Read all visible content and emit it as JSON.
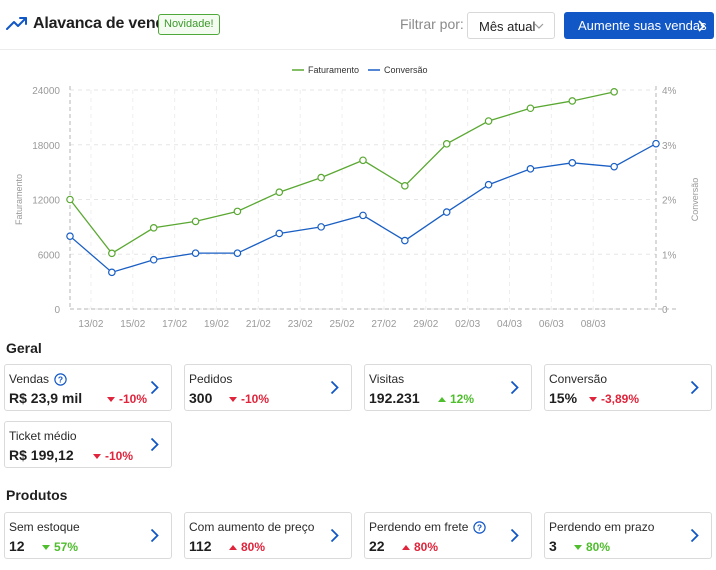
{
  "header": {
    "title": "Alavanca de vendas",
    "badge": "Novidade!",
    "filter_label": "Filtrar por:",
    "filter_value": "Mês atual",
    "cta_label": "Aumente suas vendas"
  },
  "colors": {
    "faturamento": "#5aa832",
    "conversao": "#1a5fc4",
    "accent": "#1257c6",
    "negative": "#e0243b",
    "positive": "#4fbe2d"
  },
  "chart_data": {
    "type": "line",
    "legend": [
      "Faturamento",
      "Conversão"
    ],
    "legend_position": "top-center",
    "ylabel_left": "Faturamento",
    "ylabel_right": "Conversão",
    "x_ticks": [
      "13/02",
      "15/02",
      "17/02",
      "19/02",
      "21/02",
      "23/02",
      "25/02",
      "27/02",
      "29/02",
      "02/03",
      "04/03",
      "06/03",
      "08/03"
    ],
    "y_left_ticks": [
      "0",
      "6000",
      "12000",
      "18000",
      "24000"
    ],
    "y_right_ticks": [
      "0",
      "1%",
      "2%",
      "3%",
      "4%"
    ],
    "ylim_left": [
      0,
      24000
    ],
    "ylim_right": [
      0,
      4
    ],
    "grid": true,
    "series": [
      {
        "name": "Faturamento",
        "axis": "left",
        "values": [
          {
            "x": "12/02",
            "y": 12000
          },
          {
            "x": "14/02",
            "y": 6100
          },
          {
            "x": "16/02",
            "y": 8900
          },
          {
            "x": "18/02",
            "y": 9600
          },
          {
            "x": "20/02",
            "y": 10700
          },
          {
            "x": "22/02",
            "y": 12800
          },
          {
            "x": "24/02",
            "y": 14400
          },
          {
            "x": "26/02",
            "y": 16300
          },
          {
            "x": "28/02",
            "y": 13500
          },
          {
            "x": "01/03",
            "y": 18100
          },
          {
            "x": "03/03",
            "y": 20600
          },
          {
            "x": "05/03",
            "y": 22000
          },
          {
            "x": "07/03",
            "y": 22800
          },
          {
            "x": "09/03",
            "y": 23800
          }
        ]
      },
      {
        "name": "Conversão",
        "axis": "right",
        "values": [
          {
            "x": "12/02",
            "y": 1.33
          },
          {
            "x": "14/02",
            "y": 0.67
          },
          {
            "x": "16/02",
            "y": 0.9
          },
          {
            "x": "18/02",
            "y": 1.02
          },
          {
            "x": "20/02",
            "y": 1.02
          },
          {
            "x": "22/02",
            "y": 1.38
          },
          {
            "x": "24/02",
            "y": 1.5
          },
          {
            "x": "26/02",
            "y": 1.71
          },
          {
            "x": "28/02",
            "y": 1.25
          },
          {
            "x": "01/03",
            "y": 1.77
          },
          {
            "x": "03/03",
            "y": 2.27
          },
          {
            "x": "05/03",
            "y": 2.56
          },
          {
            "x": "07/03",
            "y": 2.67
          },
          {
            "x": "09/03",
            "y": 2.6
          },
          {
            "x": "11/03",
            "y": 3.02
          }
        ]
      }
    ]
  },
  "geral": {
    "title": "Geral",
    "cards": [
      {
        "label": "Vendas",
        "value": "R$ 23,9 mil",
        "delta": "-10%",
        "trend": "down",
        "help": true
      },
      {
        "label": "Pedidos",
        "value": "300",
        "delta": "-10%",
        "trend": "down",
        "help": false
      },
      {
        "label": "Visitas",
        "value": "192.231",
        "delta": "12%",
        "trend": "up",
        "help": false
      },
      {
        "label": "Conversão",
        "value": "15%",
        "delta": "-3,89%",
        "trend": "down",
        "help": false
      },
      {
        "label": "Ticket médio",
        "value": "R$ 199,12",
        "delta": "-10%",
        "trend": "down",
        "help": false
      }
    ]
  },
  "produtos": {
    "title": "Produtos",
    "cards": [
      {
        "label": "Sem estoque",
        "value": "12",
        "delta": "57%",
        "trend": "down-good",
        "help": false
      },
      {
        "label": "Com aumento de preço",
        "value": "112",
        "delta": "80%",
        "trend": "up-bad",
        "help": false
      },
      {
        "label": "Perdendo em frete",
        "value": "22",
        "delta": "80%",
        "trend": "up-bad",
        "help": true
      },
      {
        "label": "Perdendo em prazo",
        "value": "3",
        "delta": "80%",
        "trend": "down-good",
        "help": false
      }
    ]
  }
}
